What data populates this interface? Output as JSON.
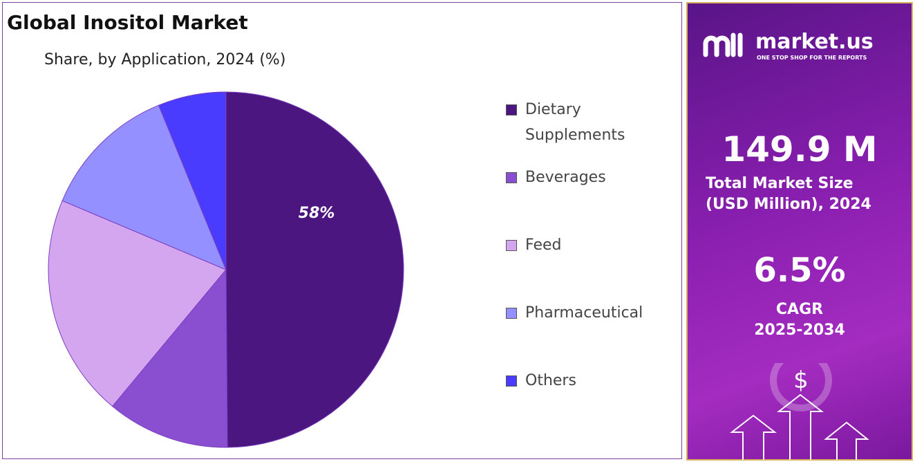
{
  "chart_data": {
    "type": "pie",
    "title": "Global Inositol Market",
    "subtitle": "Share, by Application, 2024 (%)",
    "categories": [
      "Dietary Supplements",
      "Beverages",
      "Feed",
      "Pharmaceutical",
      "Others"
    ],
    "values": [
      58,
      13,
      23.6,
      14.5,
      7.2
    ],
    "value_labels": [
      "58%",
      null,
      null,
      null,
      null
    ],
    "colors": [
      "#4b1680",
      "#8a4fd0",
      "#d4a6ef",
      "#9590ff",
      "#4a3cff"
    ],
    "legend": "right"
  },
  "panel": {
    "brand": "market.us",
    "tagline": "ONE STOP SHOP FOR THE REPORTS",
    "market_size": "149.9 M",
    "market_size_label_1": "Total Market Size",
    "market_size_label_2": "(USD Million), 2024",
    "cagr": "6.5%",
    "cagr_label": "CAGR",
    "cagr_period": "2025-2034"
  }
}
